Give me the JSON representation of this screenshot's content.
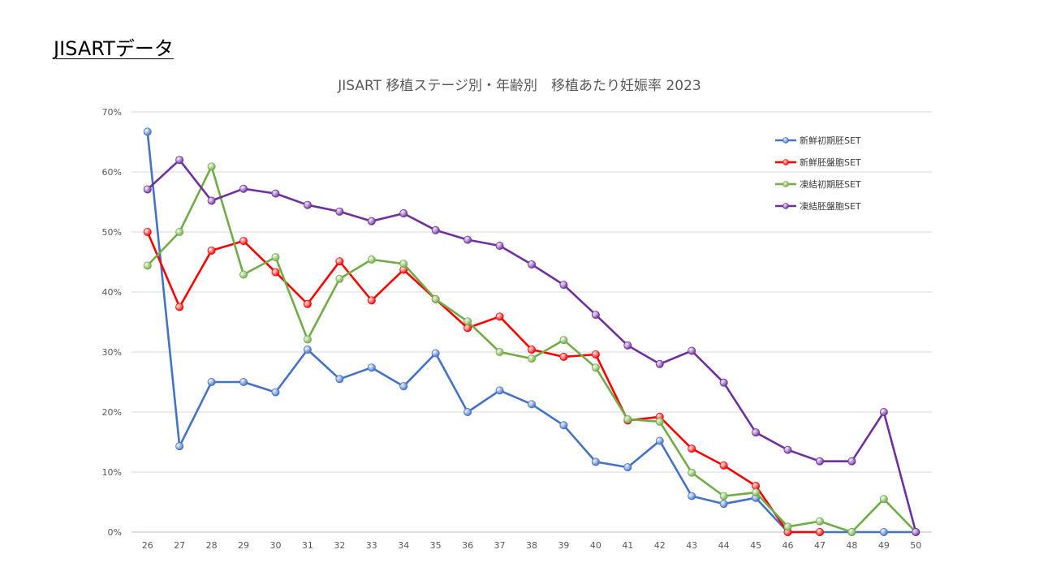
{
  "page": {
    "heading": "JISARTデータ"
  },
  "chart_data": {
    "type": "line",
    "title": "JISART 移植ステージ別・年齢別　移植あたり妊娠率  2023",
    "xlabel": "",
    "ylabel": "",
    "categories": [
      "26",
      "27",
      "28",
      "29",
      "30",
      "31",
      "32",
      "33",
      "34",
      "35",
      "36",
      "37",
      "38",
      "39",
      "40",
      "41",
      "42",
      "43",
      "44",
      "45",
      "46",
      "47",
      "48",
      "49",
      "50"
    ],
    "ylim": [
      0,
      70
    ],
    "y_ticks": [
      0,
      10,
      20,
      30,
      40,
      50,
      60,
      70
    ],
    "y_tick_labels": [
      "0%",
      "10%",
      "20%",
      "30%",
      "40%",
      "50%",
      "60%",
      "70%"
    ],
    "grid": true,
    "legend_position": "top-right",
    "series": [
      {
        "name": "新鮮初期胚SET",
        "color": "#4472C4",
        "values": [
          66.7,
          14.3,
          25.0,
          25.0,
          23.3,
          30.4,
          25.5,
          27.4,
          24.3,
          29.8,
          20.0,
          23.6,
          21.3,
          17.8,
          11.7,
          10.8,
          15.2,
          6.0,
          4.7,
          5.7,
          0.0,
          0.0,
          0.0,
          0.0,
          0.0
        ]
      },
      {
        "name": "新鮮胚盤胞SET",
        "color": "#FF0000",
        "values": [
          50.0,
          37.5,
          46.9,
          48.5,
          43.3,
          38.0,
          45.1,
          38.6,
          43.7,
          38.8,
          34.0,
          35.9,
          30.4,
          29.2,
          29.6,
          18.6,
          19.2,
          13.9,
          11.1,
          7.7,
          0.0,
          0.0,
          null,
          null,
          null
        ]
      },
      {
        "name": "凍結初期胚SET",
        "color": "#70AD47",
        "values": [
          44.4,
          50.0,
          60.9,
          42.9,
          45.8,
          32.1,
          42.2,
          45.4,
          44.7,
          38.8,
          35.1,
          30.0,
          28.9,
          32.0,
          27.4,
          18.8,
          18.4,
          9.9,
          6.0,
          6.6,
          0.9,
          1.8,
          0.0,
          5.5,
          0.0
        ]
      },
      {
        "name": "凍結胚盤胞SET",
        "color": "#7030A0",
        "values": [
          57.1,
          62.0,
          55.2,
          57.2,
          56.4,
          54.5,
          53.4,
          51.8,
          53.1,
          50.3,
          48.7,
          47.7,
          44.6,
          41.2,
          36.2,
          31.1,
          28.0,
          30.2,
          24.9,
          16.6,
          13.7,
          11.8,
          11.8,
          20.0,
          0.0
        ]
      }
    ]
  }
}
